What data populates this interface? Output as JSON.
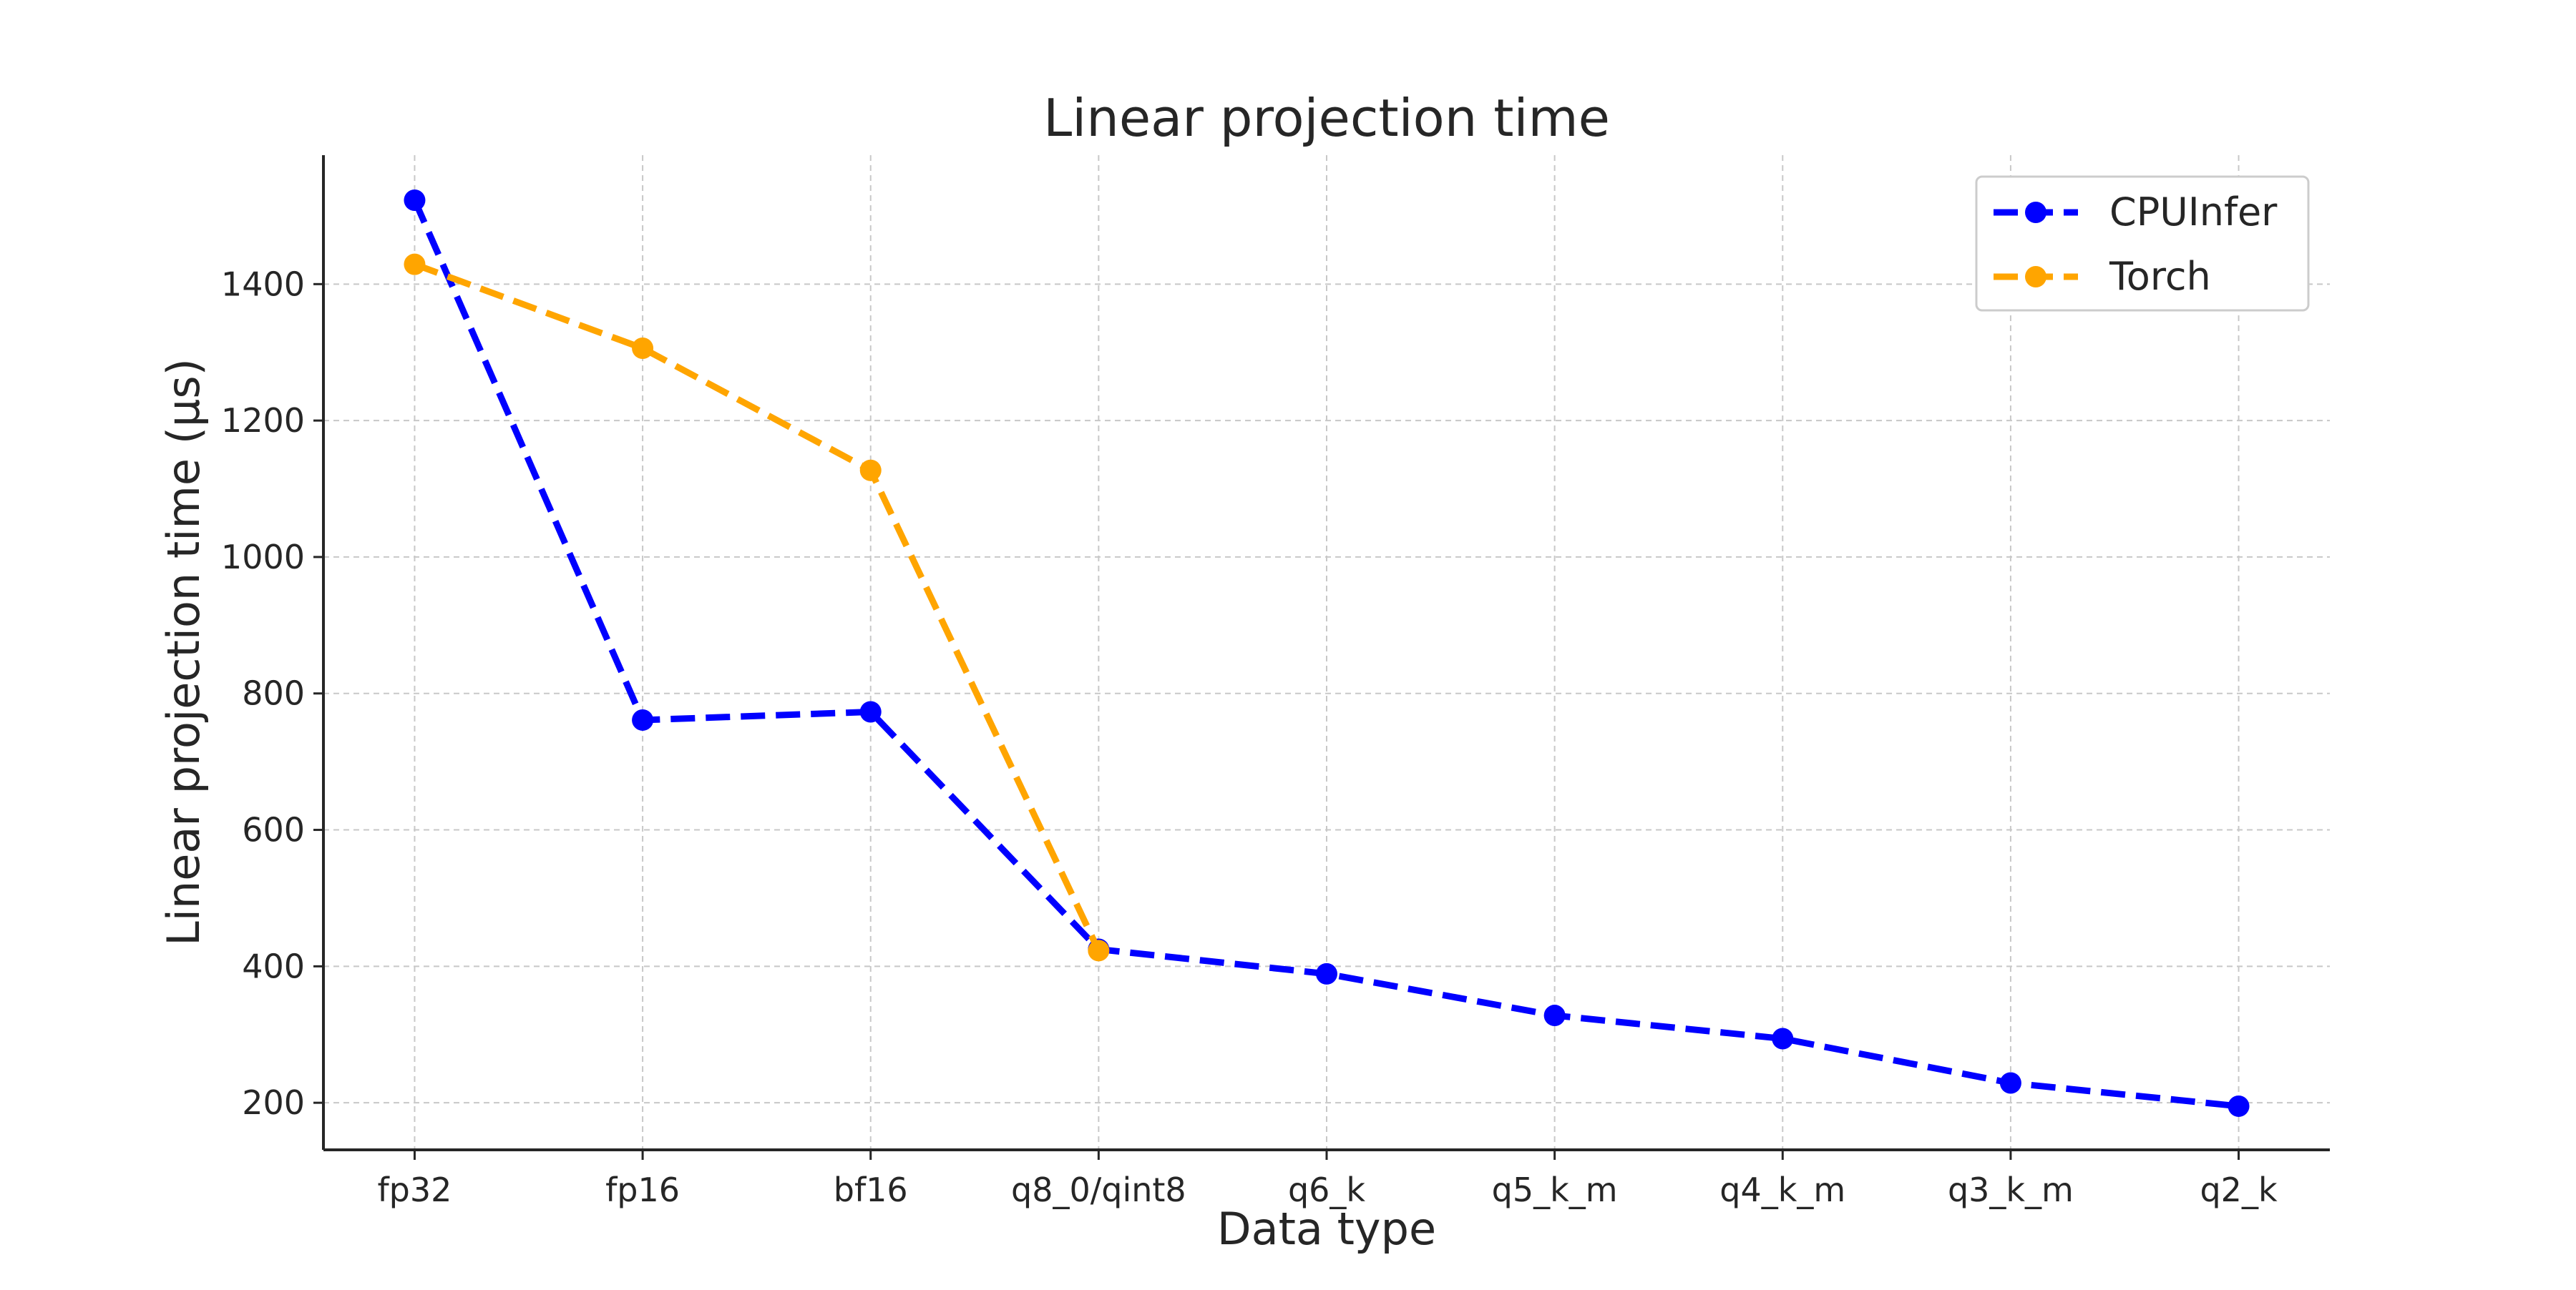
{
  "chart_data": {
    "type": "line",
    "title": "Linear projection time",
    "xlabel": "Data type",
    "ylabel": "Linear projection time (µs)",
    "categories": [
      "fp32",
      "fp16",
      "bf16",
      "q8_0/qint8",
      "q6_k",
      "q5_k_m",
      "q4_k_m",
      "q3_k_m",
      "q2_k"
    ],
    "ylim": [
      131,
      1589
    ],
    "yticks": [
      200,
      400,
      600,
      800,
      1000,
      1200,
      1400
    ],
    "grid": true,
    "legend_position": "top-right",
    "series": [
      {
        "name": "CPUInfer",
        "color": "#0000ff",
        "style": "dashed",
        "marker": "circle",
        "values": [
          1523,
          761,
          773,
          425,
          389,
          328,
          294,
          229,
          195
        ]
      },
      {
        "name": "Torch",
        "color": "#ffa500",
        "style": "dashed",
        "marker": "circle",
        "values": [
          1429,
          1306,
          1127,
          423,
          null,
          null,
          null,
          null,
          null
        ]
      }
    ]
  }
}
